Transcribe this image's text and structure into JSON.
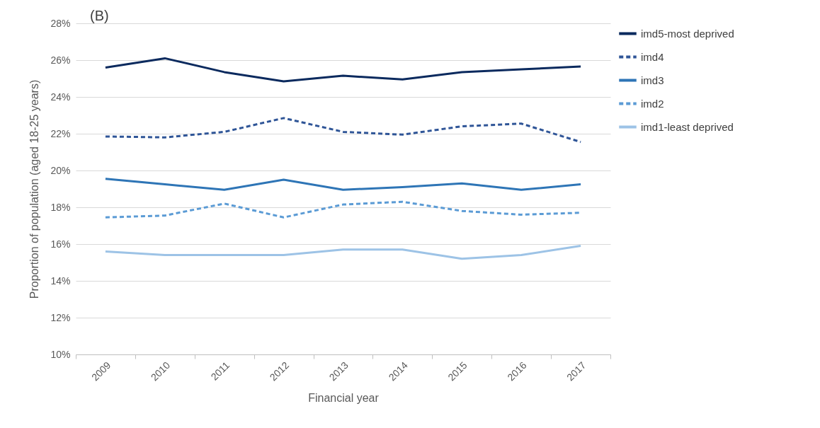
{
  "chart_data": {
    "type": "line",
    "xlabel": "Financial year",
    "ylabel": "Proportion of population (aged 18-25 years)",
    "annotations": [
      "(B)"
    ],
    "categories": [
      "2009",
      "2010",
      "2011",
      "2012",
      "2013",
      "2014",
      "2015",
      "2016",
      "2017"
    ],
    "series": [
      {
        "name": "imd5-most deprived",
        "color": "#0b2a5e",
        "line_style": "solid",
        "values": [
          25.6,
          26.1,
          25.35,
          24.85,
          25.15,
          24.95,
          25.35,
          25.5,
          25.65
        ]
      },
      {
        "name": "imd4",
        "color": "#2f5597",
        "line_style": "dashed",
        "values": [
          21.85,
          21.8,
          22.1,
          22.85,
          22.1,
          21.95,
          22.4,
          22.55,
          21.55
        ]
      },
      {
        "name": "imd3",
        "color": "#2e75b6",
        "line_style": "solid",
        "values": [
          19.55,
          19.25,
          18.95,
          19.5,
          18.95,
          19.1,
          19.3,
          18.95,
          19.25
        ]
      },
      {
        "name": "imd2",
        "color": "#5b9bd5",
        "line_style": "dashed",
        "values": [
          17.45,
          17.55,
          18.2,
          17.45,
          18.15,
          18.3,
          17.8,
          17.6,
          17.7
        ]
      },
      {
        "name": "imd1-least deprived",
        "color": "#9dc3e6",
        "line_style": "solid",
        "values": [
          15.6,
          15.4,
          15.4,
          15.4,
          15.7,
          15.7,
          15.2,
          15.4,
          15.9
        ]
      }
    ],
    "ylim": [
      10,
      28
    ],
    "yticks": [
      {
        "value": 10,
        "label": "10%"
      },
      {
        "value": 12,
        "label": "12%"
      },
      {
        "value": 14,
        "label": "14%"
      },
      {
        "value": 16,
        "label": "16%"
      },
      {
        "value": 18,
        "label": "18%"
      },
      {
        "value": 20,
        "label": "20%"
      },
      {
        "value": 22,
        "label": "22%"
      },
      {
        "value": 24,
        "label": "24%"
      },
      {
        "value": 26,
        "label": "26%"
      },
      {
        "value": 28,
        "label": "28%"
      }
    ],
    "grid": "y",
    "legend": "right",
    "marker": "none"
  }
}
